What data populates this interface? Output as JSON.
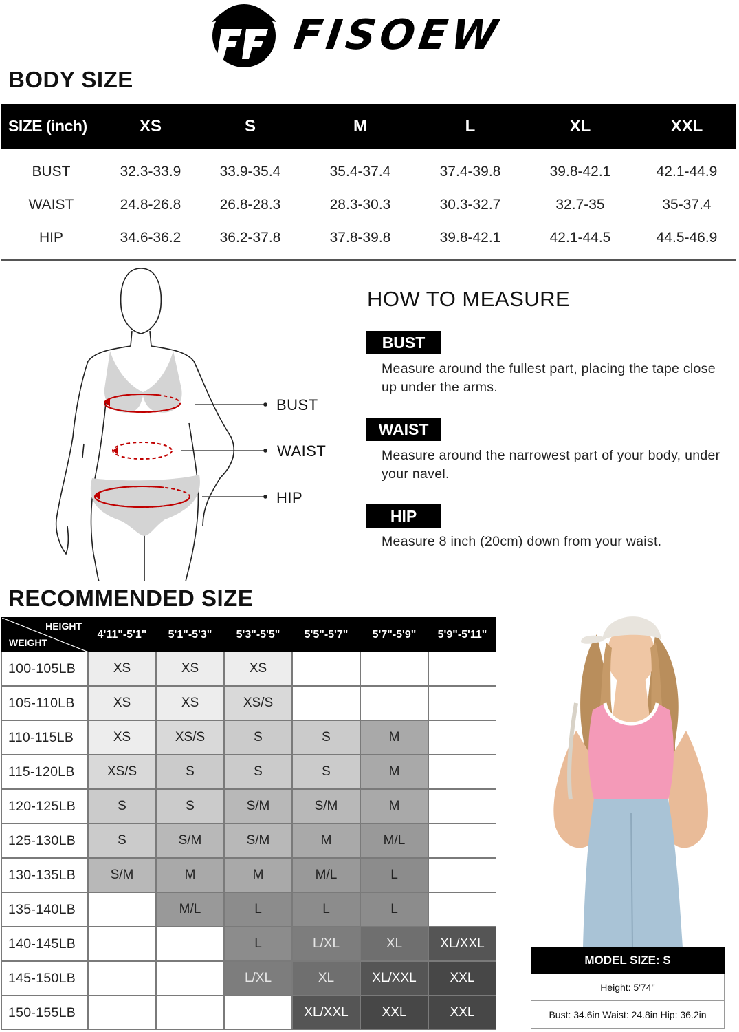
{
  "brand": {
    "name": "FISOEW"
  },
  "body_size": {
    "title": "BODY SIZE",
    "header_label": "SIZE (inch)",
    "sizes": [
      "XS",
      "S",
      "M",
      "L",
      "XL",
      "XXL"
    ],
    "rows": [
      {
        "label": "BUST",
        "values": [
          "32.3-33.9",
          "33.9-35.4",
          "35.4-37.4",
          "37.4-39.8",
          "39.8-42.1",
          "42.1-44.9"
        ]
      },
      {
        "label": "WAIST",
        "values": [
          "24.8-26.8",
          "26.8-28.3",
          "28.3-30.3",
          "30.3-32.7",
          "32.7-35",
          "35-37.4"
        ]
      },
      {
        "label": "HIP",
        "values": [
          "34.6-36.2",
          "36.2-37.8",
          "37.8-39.8",
          "39.8-42.1",
          "42.1-44.5",
          "44.5-46.9"
        ]
      }
    ]
  },
  "figure": {
    "labels": {
      "bust": "BUST",
      "waist": "WAIST",
      "hip": "HIP"
    }
  },
  "how_to_measure": {
    "title": "HOW TO MEASURE",
    "items": [
      {
        "label": "BUST",
        "desc": "Measure around the fullest part, placing the tape close up under the arms."
      },
      {
        "label": "WAIST",
        "desc": "Measure around the narrowest part of your body, under your navel."
      },
      {
        "label": "HIP",
        "desc": "Measure 8 inch (20cm) down from your waist."
      }
    ]
  },
  "recommended": {
    "title": "RECOMMENDED SIZE",
    "corner_top": "HEIGHT",
    "corner_bottom": "WEIGHT",
    "heights": [
      "4'11\"-5'1\"",
      "5'1\"-5'3\"",
      "5'3\"-5'5\"",
      "5'5\"-5'7\"",
      "5'7\"-5'9\"",
      "5'9\"-5'11\""
    ],
    "weights": [
      "100-105LB",
      "105-110LB",
      "110-115LB",
      "115-120LB",
      "120-125LB",
      "125-130LB",
      "130-135LB",
      "135-140LB",
      "140-145LB",
      "145-150LB",
      "150-155LB"
    ],
    "grid": [
      [
        "XS",
        "XS",
        "XS",
        "",
        "",
        ""
      ],
      [
        "XS",
        "XS",
        "XS/S",
        "",
        "",
        ""
      ],
      [
        "XS",
        "XS/S",
        "S",
        "S",
        "M",
        ""
      ],
      [
        "XS/S",
        "S",
        "S",
        "S",
        "M",
        ""
      ],
      [
        "S",
        "S",
        "S/M",
        "S/M",
        "M",
        ""
      ],
      [
        "S",
        "S/M",
        "S/M",
        "M",
        "M/L",
        ""
      ],
      [
        "S/M",
        "M",
        "M",
        "M/L",
        "L",
        ""
      ],
      [
        "",
        "M/L",
        "L",
        "L",
        "L",
        ""
      ],
      [
        "",
        "",
        "L",
        "L/XL",
        "XL",
        "XL/XXL"
      ],
      [
        "",
        "",
        "L/XL",
        "XL",
        "XL/XXL",
        "XXL"
      ],
      [
        "",
        "",
        "",
        "XL/XXL",
        "XXL",
        "XXL"
      ]
    ],
    "size_colors": {
      "XS": "#ededed",
      "XS/S": "#d9d9d9",
      "S": "#cbcbcb",
      "S/M": "#b8b8b8",
      "M": "#a9a9a9",
      "M/L": "#999999",
      "L": "#8c8c8c",
      "L/XL": "#7d7d7d",
      "XL": "#6f6f6f",
      "XL/XXL": "#555555",
      "XXL": "#474747"
    }
  },
  "model": {
    "title": "MODEL SIZE: S",
    "height": "Height: 5'74''",
    "measurements": "Bust: 34.6in Waist: 24.8in Hip: 36.2in"
  }
}
